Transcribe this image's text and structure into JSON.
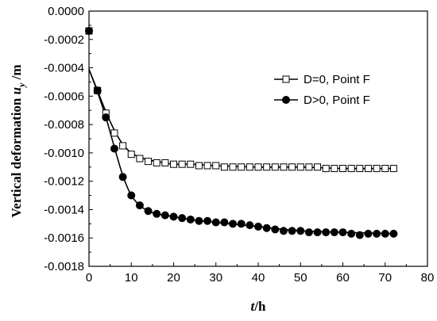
{
  "chart_data": {
    "type": "line",
    "xlabel": {
      "main": "t",
      "unit": "/h"
    },
    "ylabel": {
      "main": "Vertical deformation  ",
      "symbol": "u",
      "sub": "y",
      "unit": " /m"
    },
    "xlim": [
      0,
      80
    ],
    "ylim": [
      -0.0018,
      0
    ],
    "x_ticks": [
      0,
      10,
      20,
      30,
      40,
      50,
      60,
      70,
      80
    ],
    "x_tick_labels": [
      "0",
      "10",
      "20",
      "30",
      "40",
      "50",
      "60",
      "70",
      "80"
    ],
    "y_ticks": [
      0,
      -0.0002,
      -0.0004,
      -0.0006,
      -0.0008,
      -0.001,
      -0.0012,
      -0.0014,
      -0.0016,
      -0.0018
    ],
    "y_tick_labels": [
      "0.0000",
      "-0.0002",
      "-0.0004",
      "-0.0006",
      "-0.0008",
      "-0.0010",
      "-0.0012",
      "-0.0014",
      "-0.0016",
      "-0.0018"
    ],
    "grid": false,
    "legend_position": "top-right",
    "series": [
      {
        "name": "D=0, Point F",
        "marker": "open-square",
        "color": "#000000",
        "x": [
          0,
          2,
          4,
          6,
          8,
          10,
          12,
          14,
          16,
          18,
          20,
          22,
          24,
          26,
          28,
          30,
          32,
          34,
          36,
          38,
          40,
          42,
          44,
          46,
          48,
          50,
          52,
          54,
          56,
          58,
          60,
          62,
          64,
          66,
          68,
          70,
          72
        ],
        "y": [
          -0.00014,
          -0.00056,
          -0.00072,
          -0.00086,
          -0.00095,
          -0.00101,
          -0.00104,
          -0.00106,
          -0.00107,
          -0.00107,
          -0.00108,
          -0.00108,
          -0.00108,
          -0.00109,
          -0.00109,
          -0.00109,
          -0.0011,
          -0.0011,
          -0.0011,
          -0.0011,
          -0.0011,
          -0.0011,
          -0.0011,
          -0.0011,
          -0.0011,
          -0.0011,
          -0.0011,
          -0.0011,
          -0.00111,
          -0.00111,
          -0.00111,
          -0.00111,
          -0.00111,
          -0.00111,
          -0.00111,
          -0.00111,
          -0.00111
        ]
      },
      {
        "name": "D>0, Point F",
        "marker": "filled-circle",
        "color": "#000000",
        "x": [
          0,
          2,
          4,
          6,
          8,
          10,
          12,
          14,
          16,
          18,
          20,
          22,
          24,
          26,
          28,
          30,
          32,
          34,
          36,
          38,
          40,
          42,
          44,
          46,
          48,
          50,
          52,
          54,
          56,
          58,
          60,
          62,
          64,
          66,
          68,
          70,
          72
        ],
        "y": [
          -0.00014,
          -0.00056,
          -0.00075,
          -0.00097,
          -0.00117,
          -0.0013,
          -0.00137,
          -0.00141,
          -0.00143,
          -0.00144,
          -0.00145,
          -0.00146,
          -0.00147,
          -0.00148,
          -0.00148,
          -0.00149,
          -0.00149,
          -0.0015,
          -0.0015,
          -0.00151,
          -0.00152,
          -0.00153,
          -0.00154,
          -0.00155,
          -0.00155,
          -0.00155,
          -0.00156,
          -0.00156,
          -0.00156,
          -0.00156,
          -0.00156,
          -0.00157,
          -0.00158,
          -0.00157,
          -0.00157,
          -0.00157,
          -0.00157
        ]
      }
    ],
    "fitted_curves": [
      {
        "series": "D=0, Point F",
        "x": [
          0,
          2,
          4,
          6,
          8,
          10,
          12,
          14,
          16,
          18,
          20,
          24,
          30,
          40,
          50,
          60,
          72
        ],
        "y": [
          -0.00041,
          -0.00056,
          -0.00071,
          -0.00084,
          -0.00094,
          -0.001,
          -0.00103,
          -0.00105,
          -0.00106,
          -0.00107,
          -0.00108,
          -0.00108,
          -0.00109,
          -0.0011,
          -0.0011,
          -0.00111,
          -0.00111
        ]
      },
      {
        "series": "D>0, Point F",
        "x": [
          0,
          2,
          4,
          6,
          8,
          10,
          12,
          14,
          16,
          18,
          20,
          24,
          30,
          40,
          50,
          60,
          72
        ],
        "y": [
          -0.00041,
          -0.00057,
          -0.00075,
          -0.00096,
          -0.00116,
          -0.0013,
          -0.00137,
          -0.00141,
          -0.00143,
          -0.00144,
          -0.00145,
          -0.00147,
          -0.00149,
          -0.00152,
          -0.00155,
          -0.00156,
          -0.00157
        ]
      }
    ]
  }
}
